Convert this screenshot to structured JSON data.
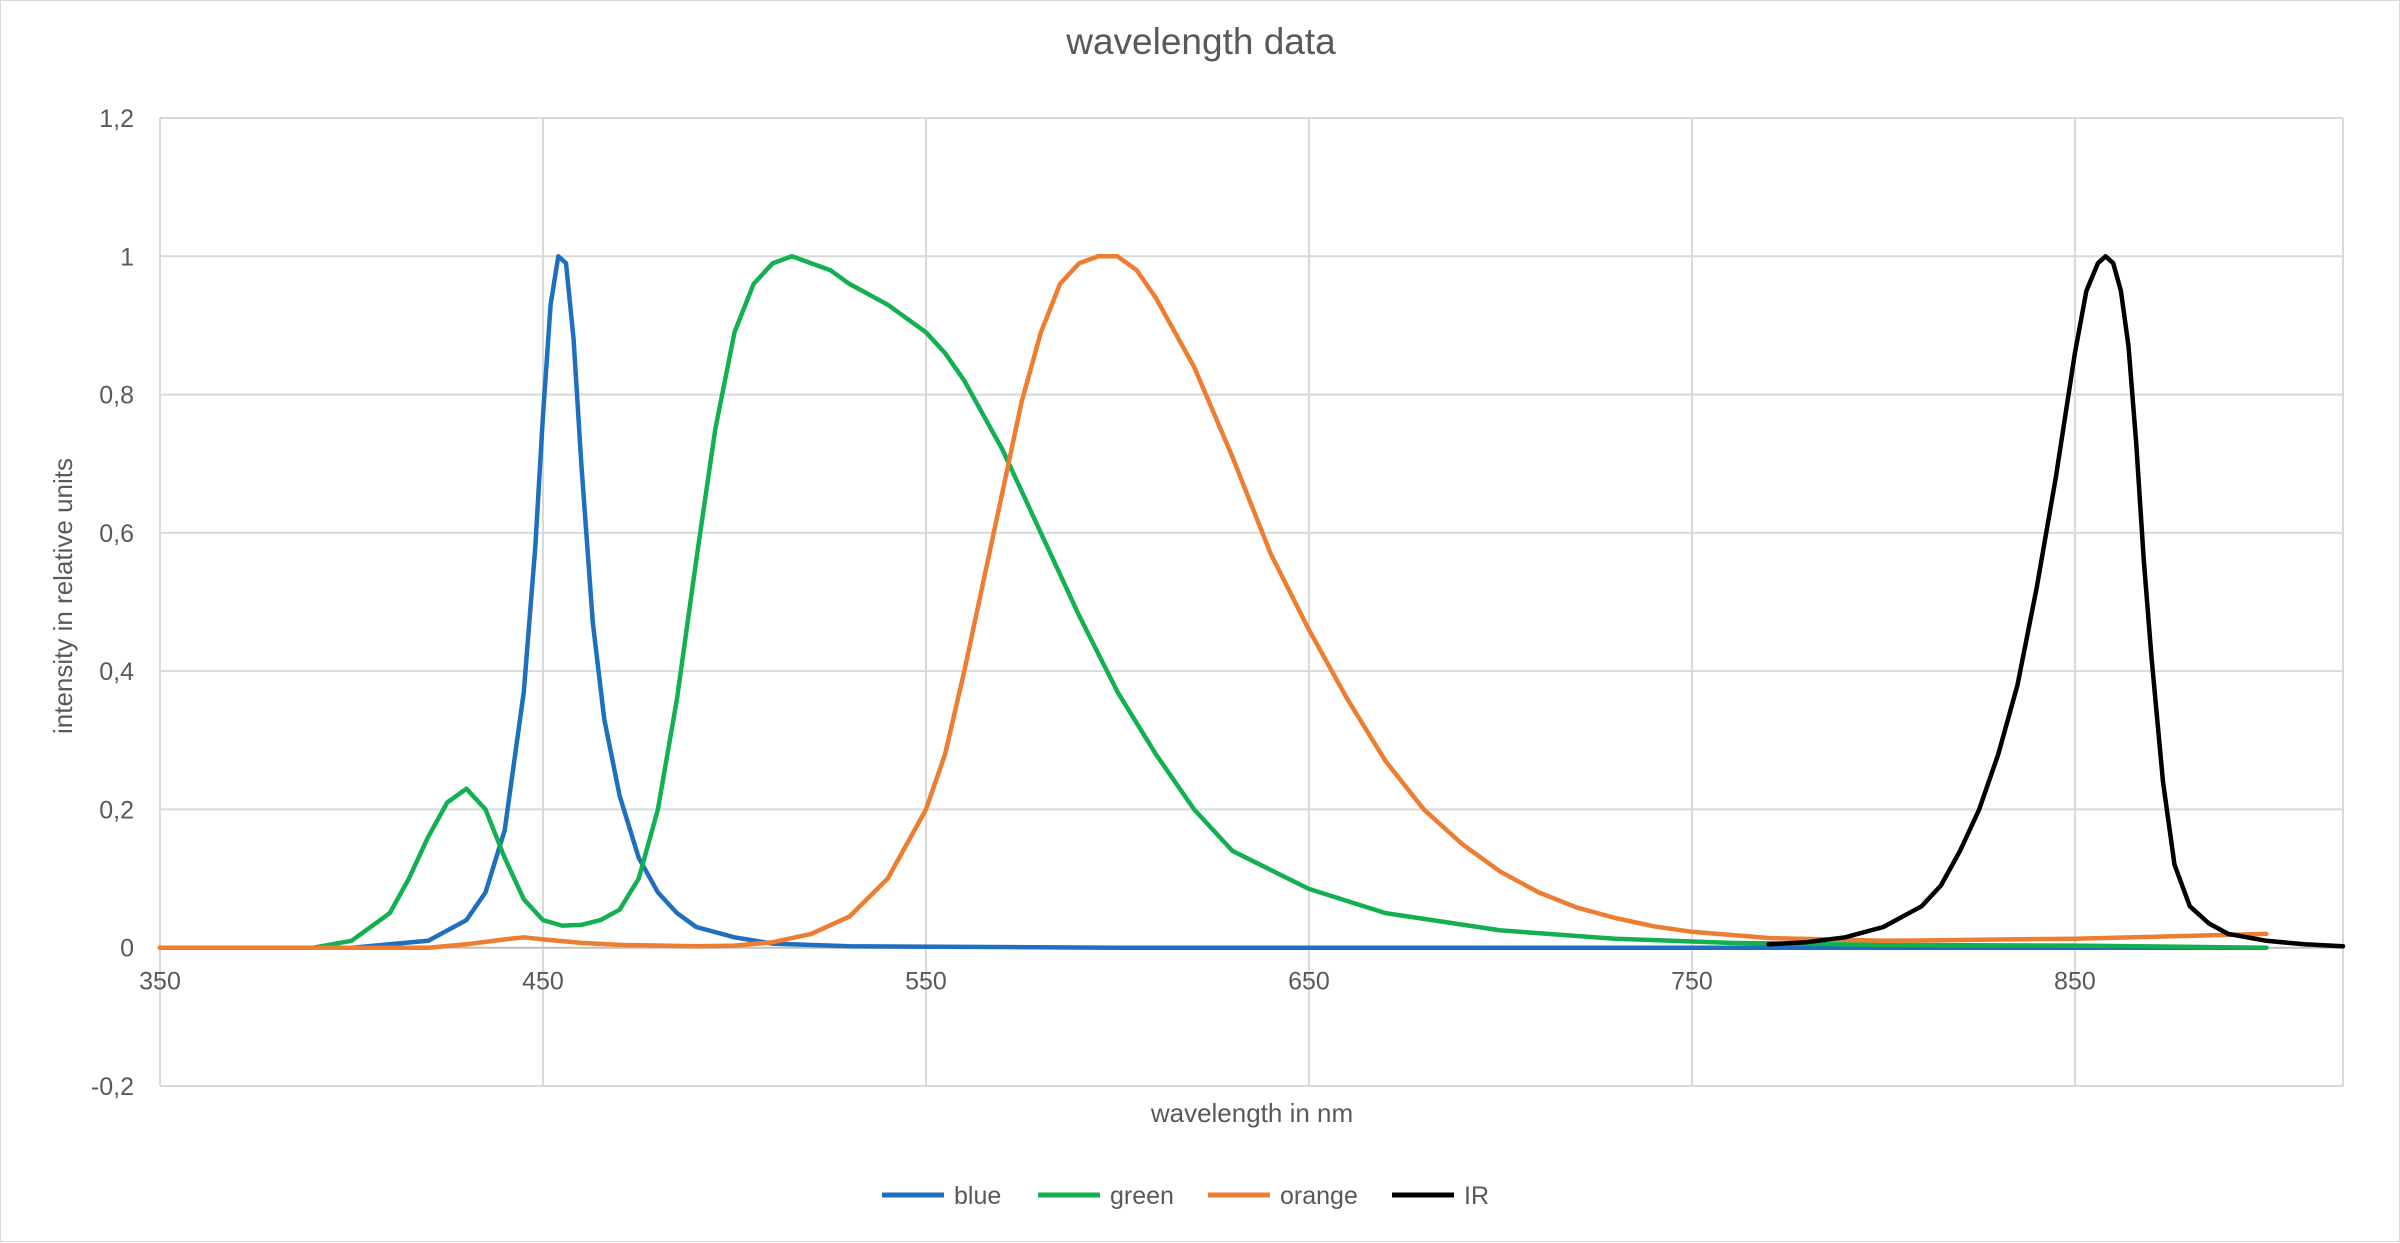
{
  "chart_data": {
    "type": "line",
    "title": "wavelength data",
    "xlabel": "wavelength in nm",
    "ylabel": "intensity in relative units",
    "xlim": [
      350,
      920
    ],
    "ylim": [
      -0.2,
      1.2
    ],
    "x_ticks": [
      350,
      450,
      550,
      650,
      750,
      850
    ],
    "x_tick_labels": [
      "350",
      "450",
      "550",
      "650",
      "750",
      "850"
    ],
    "y_ticks": [
      -0.2,
      0,
      0.2,
      0.4,
      0.6,
      0.8,
      1,
      1.2
    ],
    "y_tick_labels": [
      "-0,2",
      "0",
      "0,2",
      "0,4",
      "0,6",
      "0,8",
      "1",
      "1,2"
    ],
    "grid": "major",
    "legend_position": "bottom",
    "series": [
      {
        "name": "blue",
        "color": "#1f6fbf",
        "x": [
          350,
          400,
          420,
          430,
          435,
          440,
          445,
          448,
          450,
          452,
          454,
          456,
          458,
          460,
          463,
          466,
          470,
          475,
          480,
          485,
          490,
          500,
          510,
          530,
          600,
          700,
          800,
          900
        ],
        "y": [
          0,
          0,
          0.01,
          0.04,
          0.08,
          0.17,
          0.37,
          0.58,
          0.77,
          0.93,
          1.0,
          0.99,
          0.88,
          0.7,
          0.47,
          0.33,
          0.22,
          0.13,
          0.08,
          0.05,
          0.03,
          0.015,
          0.006,
          0.002,
          0,
          0,
          0,
          0
        ]
      },
      {
        "name": "green",
        "color": "#12b050",
        "x": [
          350,
          390,
          400,
          410,
          415,
          420,
          425,
          430,
          435,
          440,
          445,
          450,
          455,
          460,
          465,
          470,
          475,
          480,
          485,
          490,
          495,
          500,
          505,
          510,
          515,
          520,
          525,
          530,
          540,
          550,
          555,
          560,
          570,
          580,
          590,
          600,
          610,
          620,
          630,
          650,
          670,
          700,
          730,
          760,
          800,
          850,
          900
        ],
        "y": [
          0,
          0,
          0.01,
          0.05,
          0.1,
          0.16,
          0.21,
          0.23,
          0.2,
          0.13,
          0.07,
          0.04,
          0.032,
          0.033,
          0.04,
          0.055,
          0.1,
          0.2,
          0.36,
          0.56,
          0.75,
          0.89,
          0.96,
          0.99,
          1.0,
          0.99,
          0.98,
          0.96,
          0.93,
          0.89,
          0.86,
          0.82,
          0.72,
          0.6,
          0.48,
          0.37,
          0.28,
          0.2,
          0.14,
          0.085,
          0.05,
          0.025,
          0.013,
          0.007,
          0.004,
          0.003,
          0
        ]
      },
      {
        "name": "orange",
        "color": "#ed7d31",
        "x": [
          350,
          420,
          430,
          440,
          445,
          450,
          460,
          470,
          490,
          500,
          510,
          520,
          530,
          540,
          550,
          555,
          560,
          565,
          570,
          575,
          580,
          585,
          590,
          595,
          600,
          605,
          610,
          620,
          630,
          640,
          650,
          660,
          670,
          680,
          690,
          700,
          710,
          720,
          730,
          740,
          750,
          770,
          800,
          850,
          900
        ],
        "y": [
          0,
          0,
          0.005,
          0.012,
          0.015,
          0.012,
          0.007,
          0.004,
          0.002,
          0.003,
          0.008,
          0.02,
          0.045,
          0.1,
          0.2,
          0.28,
          0.4,
          0.53,
          0.66,
          0.79,
          0.89,
          0.96,
          0.99,
          1.0,
          1.0,
          0.98,
          0.94,
          0.84,
          0.71,
          0.57,
          0.46,
          0.36,
          0.27,
          0.2,
          0.15,
          0.11,
          0.08,
          0.058,
          0.043,
          0.031,
          0.023,
          0.014,
          0.01,
          0.013,
          0.02
        ]
      },
      {
        "name": "IR",
        "color": "#000000",
        "x": [
          770,
          780,
          790,
          800,
          810,
          815,
          820,
          825,
          830,
          835,
          840,
          845,
          850,
          853,
          856,
          858,
          860,
          862,
          864,
          866,
          868,
          870,
          873,
          876,
          880,
          885,
          890,
          900,
          910,
          920
        ],
        "y": [
          0.005,
          0.008,
          0.015,
          0.03,
          0.06,
          0.09,
          0.14,
          0.2,
          0.28,
          0.38,
          0.52,
          0.68,
          0.86,
          0.95,
          0.99,
          1.0,
          0.99,
          0.95,
          0.87,
          0.73,
          0.56,
          0.42,
          0.24,
          0.12,
          0.06,
          0.035,
          0.02,
          0.01,
          0.005,
          0.002
        ]
      }
    ]
  }
}
